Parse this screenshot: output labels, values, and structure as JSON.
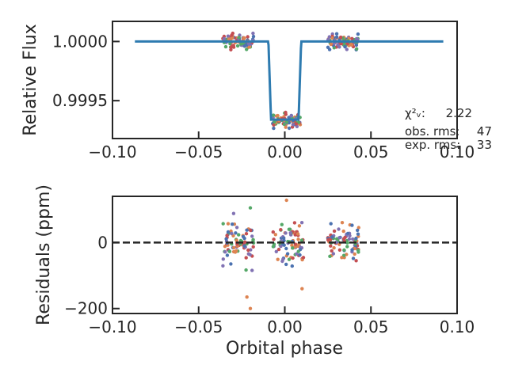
{
  "chart_data": [
    {
      "type": "line",
      "ylabel": "Relative Flux",
      "xlim": [
        -0.1,
        0.1
      ],
      "ylim": [
        0.99918,
        1.00017
      ],
      "xticks": [
        -0.1,
        -0.05,
        0.0,
        0.05,
        0.1
      ],
      "xtick_labels": [
        "−0.10",
        "−0.05",
        "0.00",
        "0.05",
        "0.10"
      ],
      "yticks": [
        0.9995,
        1.0
      ],
      "ytick_labels": [
        "0.9995",
        "1.0000"
      ],
      "grid": false,
      "model": {
        "color": "#2e7bb0",
        "x_range": [
          -0.087,
          0.092
        ],
        "baseline": 1.0,
        "transit_center": 0.0,
        "half_width": 0.0095,
        "ingress": 0.0015,
        "depth": 0.00066
      },
      "point_colors": [
        "#4c72b0",
        "#dd8452",
        "#55a868",
        "#c44e52",
        "#8172b3"
      ],
      "point_groups": [
        {
          "x_range": [
            -0.036,
            -0.018
          ],
          "y_center": 1.0,
          "y_spread": 5e-05
        },
        {
          "x_range": [
            -0.007,
            0.009
          ],
          "y_center": 0.99933,
          "y_spread": 5e-05
        },
        {
          "x_range": [
            0.025,
            0.043
          ],
          "y_center": 1.0,
          "y_spread": 5e-05
        }
      ],
      "stats": {
        "chi2_label": "χ²ᵥ:",
        "chi2_value": "2.22",
        "obs_label": "obs. rms:",
        "obs_value": "47",
        "exp_label": "exp. rms:",
        "exp_value": "33"
      }
    },
    {
      "type": "scatter",
      "ylabel": "Residuals (ppm)",
      "xlabel": "Orbital phase",
      "xlim": [
        -0.1,
        0.1
      ],
      "ylim": [
        -215,
        140
      ],
      "xticks": [
        -0.1,
        -0.05,
        0.0,
        0.05,
        0.1
      ],
      "xtick_labels": [
        "−0.10",
        "−0.05",
        "0.00",
        "0.05",
        "0.10"
      ],
      "yticks": [
        -200,
        0
      ],
      "ytick_labels": [
        "−200",
        "0"
      ],
      "zero_line": {
        "y": 0,
        "style": "dashed",
        "color": "#262626"
      },
      "point_colors": [
        "#4c72b0",
        "#dd8452",
        "#55a868",
        "#c44e52",
        "#8172b3"
      ],
      "point_groups": [
        {
          "x_range": [
            -0.036,
            -0.018
          ],
          "y_center": 0,
          "y_spread": 55
        },
        {
          "x_range": [
            -0.007,
            0.011
          ],
          "y_center": 0,
          "y_spread": 55
        },
        {
          "x_range": [
            0.025,
            0.043
          ],
          "y_center": 0,
          "y_spread": 45
        }
      ],
      "outliers": [
        {
          "x": -0.02,
          "y": -200,
          "color": "#dd8452"
        },
        {
          "x": 0.001,
          "y": 128,
          "color": "#dd8452"
        },
        {
          "x": -0.022,
          "y": -165,
          "color": "#dd8452"
        },
        {
          "x": 0.01,
          "y": -140,
          "color": "#dd8452"
        },
        {
          "x": -0.02,
          "y": 105,
          "color": "#55a868"
        }
      ]
    }
  ]
}
